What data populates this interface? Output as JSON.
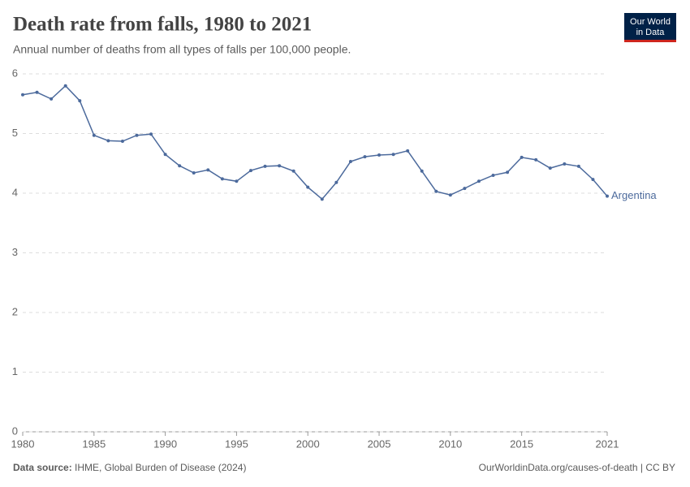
{
  "chart_data": {
    "type": "line",
    "title": "Death rate from falls, 1980 to 2021",
    "subtitle": "Annual number of deaths from all types of falls per 100,000 people.",
    "x": [
      1980,
      1981,
      1982,
      1983,
      1984,
      1985,
      1986,
      1987,
      1988,
      1989,
      1990,
      1991,
      1992,
      1993,
      1994,
      1995,
      1996,
      1997,
      1998,
      1999,
      2000,
      2001,
      2002,
      2003,
      2004,
      2005,
      2006,
      2007,
      2008,
      2009,
      2010,
      2011,
      2012,
      2013,
      2014,
      2015,
      2016,
      2017,
      2018,
      2019,
      2020,
      2021
    ],
    "series": [
      {
        "name": "Argentina",
        "color": "#4c6a9c",
        "values": [
          5.65,
          5.69,
          5.58,
          5.8,
          5.55,
          4.97,
          4.88,
          4.87,
          4.97,
          4.99,
          4.65,
          4.46,
          4.34,
          4.39,
          4.24,
          4.2,
          4.38,
          4.45,
          4.46,
          4.37,
          4.1,
          3.9,
          4.18,
          4.53,
          4.61,
          4.64,
          4.65,
          4.71,
          4.37,
          4.03,
          3.97,
          4.08,
          4.2,
          4.3,
          4.35,
          4.6,
          4.56,
          4.42,
          4.49,
          4.45,
          4.23,
          3.95
        ]
      }
    ],
    "xlim": [
      1980,
      2021
    ],
    "ylim": [
      0,
      6
    ],
    "xticks": [
      1980,
      1985,
      1990,
      1995,
      2000,
      2005,
      2010,
      2015,
      2021
    ],
    "yticks": [
      0,
      1,
      2,
      3,
      4,
      5,
      6
    ],
    "grid": true
  },
  "logo": {
    "line1": "Our World",
    "line2": "in Data"
  },
  "footer": {
    "source_label": "Data source:",
    "source": "IHME, Global Burden of Disease (2024)",
    "credit": "OurWorldinData.org/causes-of-death | CC BY"
  }
}
